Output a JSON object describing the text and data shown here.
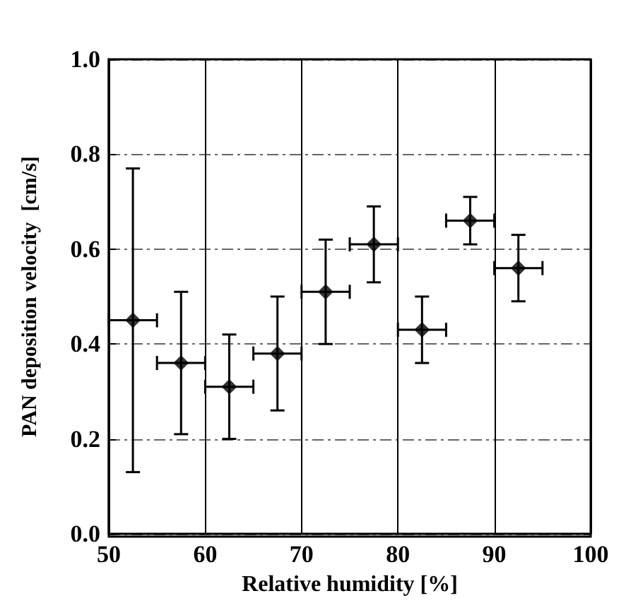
{
  "chart_data": {
    "type": "scatter",
    "xlabel": "Relative humidity [%]",
    "ylabel": "PAN deposition velocity  [cm/s]",
    "x": [
      52.5,
      57.5,
      62.5,
      67.5,
      72.5,
      77.5,
      82.5,
      87.5,
      92.5
    ],
    "values": [
      0.45,
      0.36,
      0.31,
      0.38,
      0.51,
      0.61,
      0.43,
      0.66,
      0.56
    ],
    "errors": [
      [
        0.13,
        0.77
      ],
      [
        0.21,
        0.51
      ],
      [
        0.2,
        0.42
      ],
      [
        0.26,
        0.5
      ],
      [
        0.4,
        0.62
      ],
      [
        0.53,
        0.69
      ],
      [
        0.36,
        0.5
      ],
      [
        0.61,
        0.71
      ],
      [
        0.49,
        0.63
      ]
    ],
    "xerrors": [
      [
        50,
        55
      ],
      [
        55,
        60
      ],
      [
        60,
        65
      ],
      [
        65,
        70
      ],
      [
        70,
        75
      ],
      [
        75,
        80
      ],
      [
        80,
        85
      ],
      [
        85,
        90
      ],
      [
        90,
        95
      ]
    ],
    "color": "#000000",
    "marker": "diamond",
    "grid": true,
    "xlim": [
      50,
      100
    ],
    "xticks": [
      50,
      60,
      70,
      80,
      90,
      100
    ],
    "ylim": [
      0,
      1
    ],
    "yticks": [
      {
        "value": 0,
        "label": "0.0"
      },
      {
        "value": 0.2,
        "label": "0.2"
      },
      {
        "value": 0.4,
        "label": "0.4"
      },
      {
        "value": 0.6,
        "label": "0.6"
      },
      {
        "value": 0.8,
        "label": "0.8"
      },
      {
        "value": 1,
        "label": "1.0"
      }
    ]
  }
}
